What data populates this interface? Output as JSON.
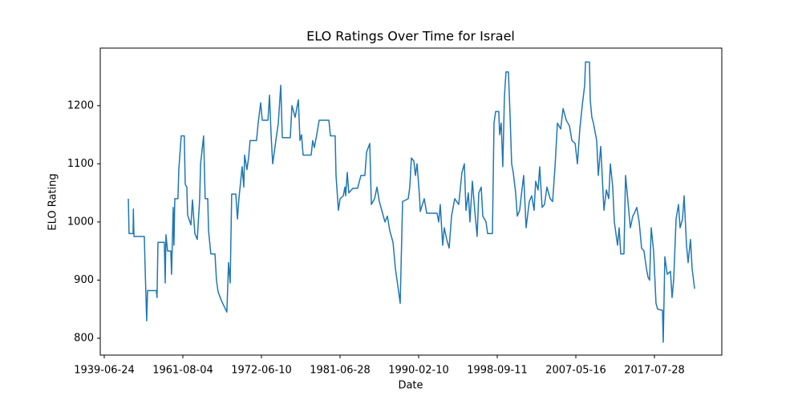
{
  "chart_data": {
    "type": "line",
    "title": "ELO Ratings Over Time for Israel",
    "x_label": "Date",
    "y_label": "ELO Rating",
    "color": "#1f77b4",
    "x": [
      "1946-04-01",
      "1946-06-15",
      "1947-08-01",
      "1947-09-01",
      "1947-11-01",
      "1950-10-01",
      "1951-01-01",
      "1951-06-01",
      "1951-09-01",
      "1954-02-15",
      "1954-05-01",
      "1954-08-01",
      "1956-05-15",
      "1956-08-15",
      "1956-11-01",
      "1957-04-15",
      "1958-03-15",
      "1958-06-01",
      "1958-11-15",
      "1959-02-01",
      "1959-05-01",
      "1960-03-15",
      "1960-06-15",
      "1961-02-15",
      "1961-10-15",
      "1961-12-01",
      "1962-02-20",
      "1962-04-01",
      "1962-09-15",
      "1962-12-01",
      "1963-04-01",
      "1963-08-01",
      "1963-12-01",
      "1964-01-15",
      "1964-06-15",
      "1964-09-01",
      "1965-01-10",
      "1965-02-20",
      "1965-06-15",
      "1966-01-10",
      "1966-03-25",
      "1966-06-15",
      "1966-11-25",
      "1967-09-01",
      "1967-11-25",
      "1968-02-15",
      "1968-05-01",
      "1968-11-25",
      "1969-02-15",
      "1969-05-01",
      "1969-10-10",
      "1970-01-01",
      "1970-02-10",
      "1970-06-10",
      "1970-08-30",
      "1970-11-15",
      "1971-10-05",
      "1971-12-28",
      "1972-05-01",
      "1972-07-15",
      "1973-03-10",
      "1973-05-15",
      "1973-07-20",
      "1973-09-25",
      "1974-02-05",
      "1974-05-20",
      "1974-08-30",
      "1974-11-05",
      "1975-10-05",
      "1975-12-15",
      "1976-04-25",
      "1976-09-10",
      "1976-11-15",
      "1977-01-20",
      "1977-03-28",
      "1978-03-01",
      "1978-05-05",
      "1978-07-12",
      "1978-10-22",
      "1979-02-01",
      "1980-03-15",
      "1980-05-20",
      "1980-12-05",
      "1981-01-10",
      "1981-04-20",
      "1981-07-01",
      "1981-11-05",
      "1982-01-10",
      "1982-02-08",
      "1982-04-12",
      "1982-06-15",
      "1982-11-25",
      "1983-06-02",
      "1983-10-12",
      "1984-03-20",
      "1984-05-25",
      "1984-10-01",
      "1984-12-03",
      "1985-04-12",
      "1985-07-16",
      "1985-10-20",
      "1986-01-25",
      "1986-06-02",
      "1986-09-06",
      "1986-12-12",
      "1987-04-20",
      "1987-07-24",
      "1987-10-30",
      "1988-02-02",
      "1988-05-08",
      "1988-12-20",
      "1989-02-20",
      "1989-04-26",
      "1989-07-31",
      "1989-10-04",
      "1989-12-08",
      "1990-03-15",
      "1990-04-16",
      "1990-09-21",
      "1990-12-28",
      "1992-02-15",
      "1992-04-20",
      "1992-06-21",
      "1992-09-26",
      "1992-11-28",
      "1993-03-05",
      "1993-06-10",
      "1993-09-14",
      "1994-01-20",
      "1994-06-28",
      "1994-11-03",
      "1995-02-07",
      "1995-04-12",
      "1995-07-16",
      "1995-09-17",
      "1995-12-24",
      "1996-03-28",
      "1996-07-02",
      "1996-09-05",
      "1996-12-10",
      "1997-02-13",
      "1997-06-21",
      "1997-08-23",
      "1998-03-03",
      "1998-05-05",
      "1998-07-08",
      "1998-11-13",
      "1998-12-16",
      "1999-02-18",
      "1999-04-23",
      "1999-06-27",
      "1999-08-30",
      "1999-12-05",
      "2000-02-09",
      "2000-04-14",
      "2000-06-17",
      "2000-09-23",
      "2000-11-26",
      "2001-03-03",
      "2001-05-07",
      "2001-08-12",
      "2001-11-17",
      "2002-03-26",
      "2002-07-01",
      "2002-10-06",
      "2002-12-09",
      "2003-03-16",
      "2003-05-20",
      "2003-08-25",
      "2003-11-30",
      "2004-03-07",
      "2004-07-15",
      "2004-10-22",
      "2005-01-27",
      "2005-05-04",
      "2005-09-12",
      "2005-12-18",
      "2006-04-26",
      "2006-09-02",
      "2006-12-09",
      "2007-04-18",
      "2007-07-30",
      "2007-11-21",
      "2008-03-14",
      "2008-07-08",
      "2008-08-15",
      "2009-02-20",
      "2009-03-29",
      "2009-06-13",
      "2009-08-28",
      "2010-01-29",
      "2010-04-15",
      "2010-08-08",
      "2011-01-08",
      "2011-05-01",
      "2011-08-23",
      "2011-11-07",
      "2012-02-28",
      "2012-05-14",
      "2012-07-29",
      "2012-10-13",
      "2012-12-28",
      "2013-03-14",
      "2013-08-13",
      "2013-10-28",
      "2014-02-19",
      "2014-06-13",
      "2014-10-05",
      "2014-12-20",
      "2015-04-13",
      "2015-08-05",
      "2015-11-27",
      "2016-03-20",
      "2016-07-12",
      "2016-09-26",
      "2016-12-11",
      "2017-02-25",
      "2017-06-19",
      "2017-10-10",
      "2017-12-25",
      "2018-08-12",
      "2018-09-18",
      "2018-12-03",
      "2019-03-27",
      "2019-08-26",
      "2019-11-10",
      "2020-01-25",
      "2020-05-18",
      "2020-09-09",
      "2020-11-24",
      "2021-03-18",
      "2021-06-02",
      "2021-09-24",
      "2021-12-09",
      "2022-04-01",
      "2022-06-16",
      "2022-10-11"
    ],
    "values": [
      1040,
      980,
      980,
      1022,
      975,
      975,
      915,
      830,
      882,
      882,
      870,
      965,
      965,
      895,
      978,
      950,
      950,
      910,
      1025,
      960,
      1040,
      1040,
      1090,
      1148,
      1148,
      1065,
      1060,
      1012,
      995,
      1038,
      980,
      970,
      1040,
      1100,
      1148,
      1040,
      1040,
      985,
      945,
      945,
      900,
      880,
      865,
      845,
      930,
      895,
      1048,
      1048,
      1005,
      1040,
      1095,
      1060,
      1115,
      1090,
      1110,
      1140,
      1140,
      1170,
      1205,
      1175,
      1175,
      1218,
      1150,
      1100,
      1140,
      1170,
      1235,
      1145,
      1145,
      1200,
      1180,
      1210,
      1140,
      1150,
      1115,
      1115,
      1140,
      1128,
      1150,
      1175,
      1175,
      1148,
      1148,
      1080,
      1020,
      1040,
      1045,
      1060,
      1045,
      1085,
      1050,
      1058,
      1058,
      1080,
      1080,
      1120,
      1135,
      1030,
      1040,
      1060,
      1035,
      1020,
      1000,
      1010,
      985,
      965,
      920,
      890,
      860,
      1035,
      1040,
      1060,
      1110,
      1105,
      1080,
      1100,
      1045,
      1018,
      1040,
      1015,
      1015,
      1000,
      1030,
      960,
      990,
      970,
      955,
      1010,
      1040,
      1030,
      1085,
      1100,
      1020,
      1050,
      1000,
      1070,
      1020,
      975,
      1050,
      1060,
      1010,
      1000,
      980,
      980,
      1170,
      1190,
      1190,
      1150,
      1170,
      1095,
      1215,
      1258,
      1258,
      1185,
      1100,
      1085,
      1050,
      1010,
      1020,
      1045,
      1080,
      990,
      1035,
      1045,
      1020,
      1070,
      1055,
      1095,
      1025,
      1030,
      1060,
      1040,
      1035,
      1095,
      1170,
      1160,
      1195,
      1175,
      1165,
      1140,
      1135,
      1100,
      1160,
      1200,
      1235,
      1275,
      1275,
      1210,
      1180,
      1170,
      1140,
      1080,
      1130,
      1020,
      1055,
      1040,
      1100,
      1060,
      1000,
      980,
      960,
      990,
      945,
      945,
      1080,
      1035,
      990,
      1010,
      1015,
      1025,
      1000,
      955,
      950,
      920,
      905,
      900,
      990,
      950,
      860,
      850,
      848,
      793,
      940,
      910,
      915,
      870,
      900,
      1005,
      1030,
      990,
      1005,
      1045,
      960,
      930,
      970,
      920,
      885
    ],
    "xlim": [
      "1938-05-08",
      "2026-04-22"
    ],
    "xticks": [
      "1939-06-24",
      "1961-08-04",
      "1972-06-10",
      "1981-06-28",
      "1990-02-10",
      "1998-09-11",
      "2007-05-16",
      "2017-07-28"
    ],
    "ylim": [
      771,
      1299
    ],
    "yticks": [
      800,
      900,
      1000,
      1100,
      1200
    ]
  }
}
